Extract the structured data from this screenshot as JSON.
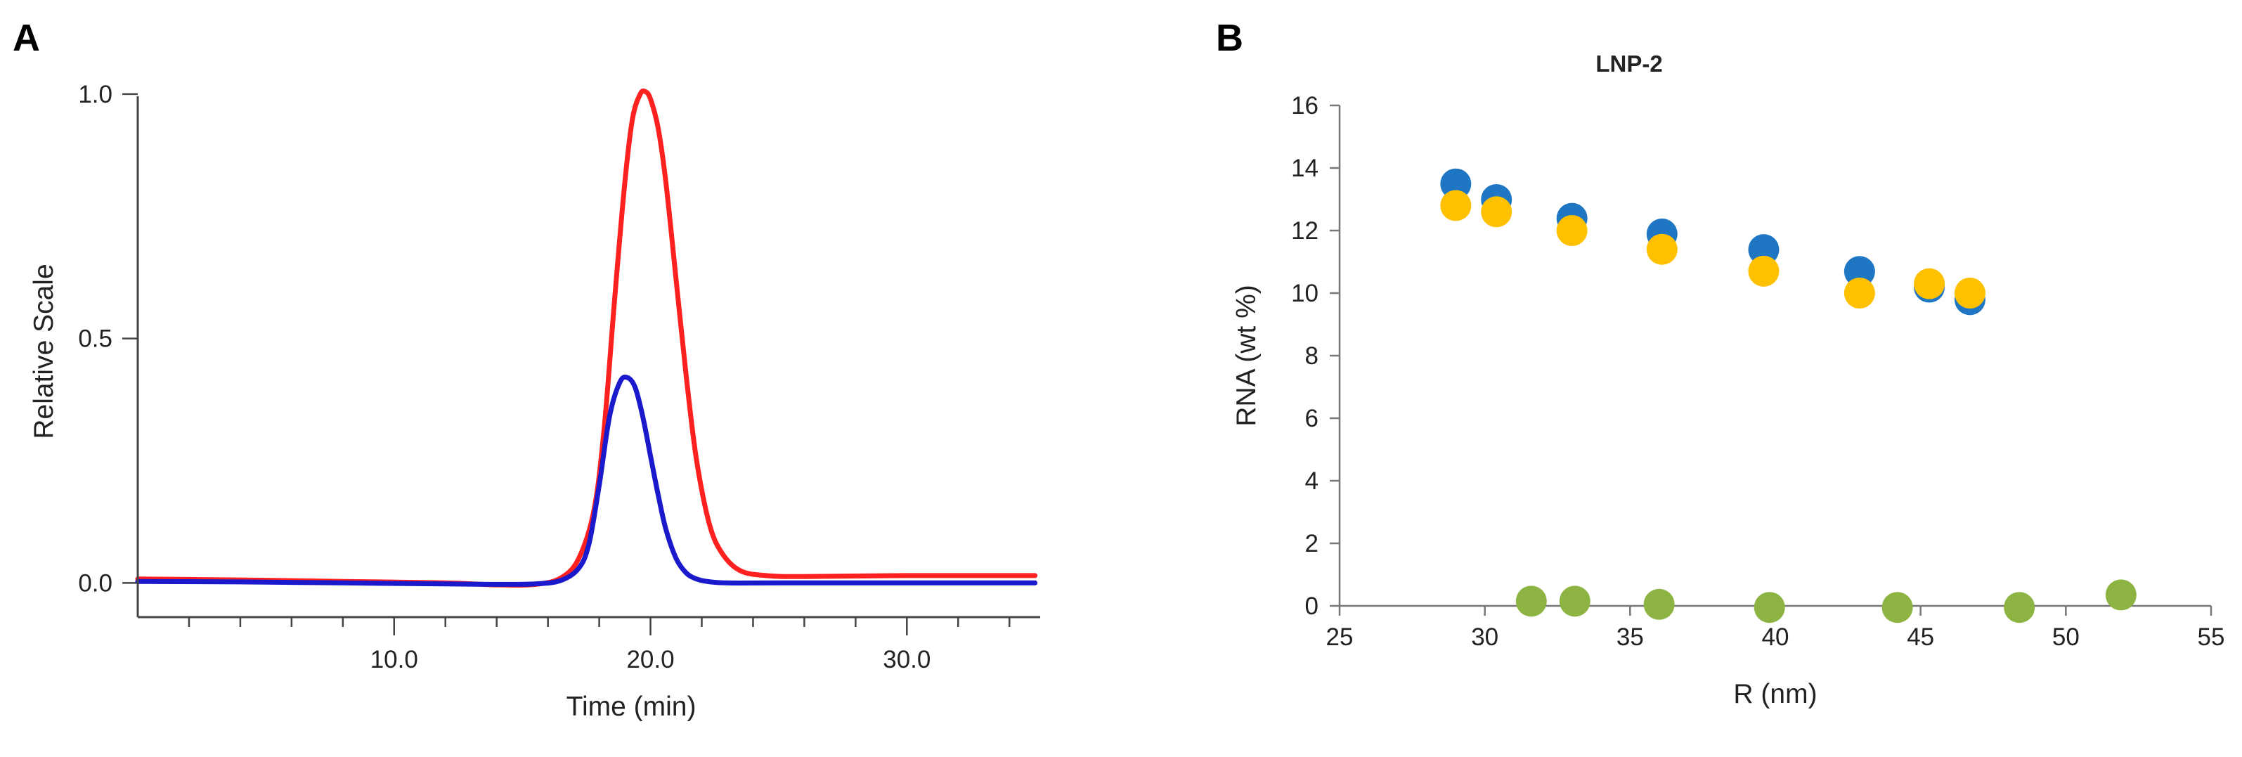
{
  "chart_data": [
    {
      "panel": "A",
      "type": "line",
      "title": "",
      "xlabel": "Time (min)",
      "ylabel": "Relative Scale",
      "xlim": [
        0,
        35.2
      ],
      "ylim": [
        -0.07,
        1.02
      ],
      "xticks_major": [
        10,
        20,
        30
      ],
      "xtick_labels": [
        "10.0",
        "20.0",
        "30.0"
      ],
      "yticks": [
        0,
        0.5,
        1
      ],
      "ytick_labels": [
        "0.0",
        "0.5",
        "1.0"
      ],
      "grid": false,
      "series": [
        {
          "name": "red",
          "color": "#ff2020",
          "x": [
            0,
            4,
            8,
            12,
            14,
            15.5,
            16.5,
            17.2,
            17.8,
            18.2,
            18.6,
            19.0,
            19.3,
            19.6,
            19.8,
            20.0,
            20.3,
            20.6,
            21.0,
            21.4,
            21.8,
            22.3,
            22.8,
            23.5,
            24.5,
            26,
            30,
            35
          ],
          "y": [
            0.008,
            0.006,
            0.003,
            0.0,
            -0.004,
            -0.003,
            0.01,
            0.05,
            0.15,
            0.32,
            0.58,
            0.82,
            0.95,
            1.0,
            1.005,
            0.99,
            0.93,
            0.82,
            0.62,
            0.42,
            0.25,
            0.12,
            0.06,
            0.025,
            0.015,
            0.013,
            0.015,
            0.015
          ]
        },
        {
          "name": "blue",
          "color": "#1a1acc",
          "x": [
            0,
            4,
            8,
            12,
            14,
            15.5,
            16.5,
            17.2,
            17.6,
            18.0,
            18.4,
            18.8,
            19.1,
            19.4,
            19.7,
            20.0,
            20.3,
            20.6,
            21.0,
            21.4,
            21.8,
            22.2,
            23,
            25,
            30,
            35
          ],
          "y": [
            0.003,
            0.002,
            0.0,
            -0.002,
            -0.003,
            -0.002,
            0.005,
            0.03,
            0.08,
            0.2,
            0.34,
            0.41,
            0.42,
            0.4,
            0.34,
            0.26,
            0.18,
            0.11,
            0.05,
            0.02,
            0.008,
            0.003,
            0.0,
            0.0,
            0.0,
            0.0
          ]
        }
      ]
    },
    {
      "panel": "B",
      "type": "scatter",
      "title": "LNP-2",
      "xlabel": "R (nm)",
      "ylabel": "RNA (wt %)",
      "xlim": [
        25,
        55
      ],
      "ylim": [
        0,
        16
      ],
      "xticks": [
        25,
        30,
        35,
        40,
        45,
        50,
        55
      ],
      "yticks": [
        0,
        2,
        4,
        6,
        8,
        10,
        12,
        14,
        16
      ],
      "grid": false,
      "series": [
        {
          "name": "blue",
          "color": "#1f77c4",
          "x": [
            29.0,
            30.4,
            33.0,
            36.1,
            39.6,
            42.9,
            45.3,
            46.7
          ],
          "y": [
            13.4,
            12.9,
            12.3,
            11.8,
            11.3,
            10.6,
            10.1,
            9.7
          ]
        },
        {
          "name": "yellow",
          "color": "#ffc000",
          "x": [
            29.0,
            30.4,
            33.0,
            36.1,
            39.6,
            42.9,
            45.3,
            46.7
          ],
          "y": [
            12.8,
            12.6,
            12.0,
            11.4,
            10.7,
            10.0,
            10.3,
            10.0
          ]
        },
        {
          "name": "green",
          "color": "#8db443",
          "x": [
            31.6,
            33.1,
            36.0,
            39.8,
            44.2,
            48.4,
            51.9
          ],
          "y": [
            0.15,
            0.15,
            0.05,
            -0.05,
            -0.05,
            -0.05,
            0.35
          ]
        }
      ]
    }
  ],
  "panels": {
    "a_letter": "A",
    "b_letter": "B"
  }
}
